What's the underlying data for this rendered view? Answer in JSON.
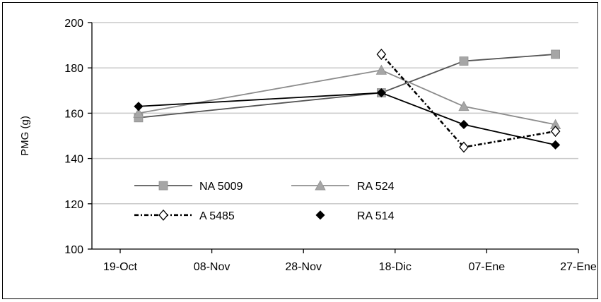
{
  "chart_data": {
    "type": "line",
    "title": "",
    "xlabel": "",
    "ylabel": "PMG  (g)",
    "ylim": [
      100,
      200
    ],
    "yticks": [
      100,
      120,
      140,
      160,
      180,
      200
    ],
    "xticks": [
      "19-Oct",
      "08-Nov",
      "28-Nov",
      "18-Dic",
      "07-Ene",
      "27-Ene"
    ],
    "xlim": [
      0,
      100
    ],
    "grid": "horizontal",
    "legend_position": "lower-left inside plot",
    "series": [
      {
        "name": "NA 5009",
        "x": [
          "23-Oct",
          "15-Dic",
          "02-Ene",
          "22-Ene"
        ],
        "values": [
          158,
          169,
          183,
          186
        ],
        "color": "#555555",
        "marker_color": "#a6a6a6",
        "marker": "square",
        "line": "solid"
      },
      {
        "name": "RA 524",
        "x": [
          "23-Oct",
          "15-Dic",
          "02-Ene",
          "22-Ene"
        ],
        "values": [
          160,
          179,
          163,
          155
        ],
        "color": "#8c8c8c",
        "marker_color": "#a6a6a6",
        "marker": "triangle",
        "line": "solid"
      },
      {
        "name": "A 5485",
        "x": [
          "15-Dic",
          "02-Ene",
          "22-Ene"
        ],
        "values": [
          186,
          145,
          152
        ],
        "color": "#000000",
        "marker_color": "#ffffff",
        "marker": "diamond-open",
        "line": "dotted"
      },
      {
        "name": "RA 514",
        "x": [
          "23-Oct",
          "15-Dic",
          "02-Ene",
          "22-Ene"
        ],
        "values": [
          163,
          169,
          155,
          146
        ],
        "color": "#000000",
        "marker_color": "#000000",
        "marker": "diamond",
        "line": "solid"
      }
    ]
  }
}
